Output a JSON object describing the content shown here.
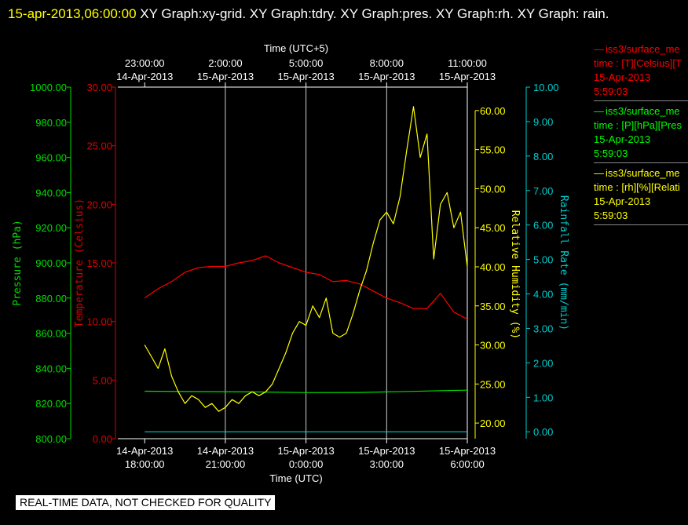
{
  "header": {
    "timestamp": "15-apr-2013,06:00:00",
    "graph_list": "  XY Graph:xy-grid.  XY Graph:tdry.  XY Graph:pres.  XY Graph:rh.  XY Graph: rain."
  },
  "legend": [
    {
      "name": "iss3/surface_me",
      "label": "time : [T][Celsius][T",
      "date": "15-Apr-2013",
      "time": "5:59:03",
      "color": "#ff0000"
    },
    {
      "name": "iss3/surface_me",
      "label": "time : [P][hPa][Pres",
      "date": "15-Apr-2013",
      "time": "5:59:03",
      "color": "#00ff00"
    },
    {
      "name": "iss3/surface_me",
      "label": "time : [rh][%][Relati",
      "date": "15-Apr-2013",
      "time": "5:59:03",
      "color": "#ffff00"
    }
  ],
  "notice": "REAL-TIME DATA, NOT CHECKED FOR QUALITY",
  "chart_data": {
    "type": "line",
    "top_axis": {
      "label": "Time (UTC+5)",
      "ticks": [
        {
          "x": 0.0,
          "date": "14-Apr-2013",
          "time": "23:00:00"
        },
        {
          "x": 3.0,
          "date": "15-Apr-2013",
          "time": "2:00:00"
        },
        {
          "x": 6.0,
          "date": "15-Apr-2013",
          "time": "5:00:00"
        },
        {
          "x": 9.0,
          "date": "15-Apr-2013",
          "time": "8:00:00"
        },
        {
          "x": 12.0,
          "date": "15-Apr-2013",
          "time": "11:00:00"
        }
      ]
    },
    "x_axis": {
      "label": "Time (UTC)",
      "range": [
        -1.0,
        12.0
      ],
      "ticks": [
        {
          "x": 0.0,
          "date": "14-Apr-2013",
          "time": "18:00:00"
        },
        {
          "x": 3.0,
          "date": "14-Apr-2013",
          "time": "21:00:00"
        },
        {
          "x": 6.0,
          "date": "15-Apr-2013",
          "time": "0:00:00"
        },
        {
          "x": 9.0,
          "date": "15-Apr-2013",
          "time": "3:00:00"
        },
        {
          "x": 12.0,
          "date": "15-Apr-2013",
          "time": "6:00:00"
        }
      ],
      "grid_vertical_at": [
        3.0,
        6.0,
        9.0
      ]
    },
    "y_axes": {
      "pressure": {
        "label": "Pressure (hPa)",
        "range": [
          800,
          1000
        ],
        "step": 20,
        "color": "#00dd00"
      },
      "temperature": {
        "label": "Temperature (Celsius)",
        "range": [
          0,
          30
        ],
        "step": 5,
        "color": "#dd0000"
      },
      "humidity": {
        "label": "Relative Humidity (%)",
        "range": [
          18,
          63
        ],
        "step": 5,
        "tick_start": 20,
        "tick_end": 60,
        "color": "#ffff00"
      },
      "rain": {
        "label": "Rainfall Rate (mm/min)",
        "range": [
          -0.2,
          10
        ],
        "step": 1,
        "tick_start": 0,
        "tick_end": 10,
        "color": "#00cccc"
      }
    },
    "series": [
      {
        "name": "T",
        "axis": "temperature",
        "color": "#ff0000",
        "x": [
          0,
          0.5,
          1,
          1.5,
          2,
          2.5,
          3,
          3.5,
          4,
          4.5,
          5,
          5.5,
          6,
          6.5,
          7,
          7.5,
          8,
          8.5,
          9,
          9.5,
          10,
          10.5,
          11,
          11.5,
          12
        ],
        "y": [
          12.0,
          12.8,
          13.4,
          14.2,
          14.6,
          14.7,
          14.7,
          15.0,
          15.2,
          15.6,
          15.0,
          14.6,
          14.2,
          14.0,
          13.4,
          13.5,
          13.2,
          12.6,
          12.0,
          11.6,
          11.1,
          11.1,
          12.4,
          10.8,
          10.2
        ]
      },
      {
        "name": "P",
        "axis": "pressure",
        "color": "#00dd00",
        "x": [
          0,
          2,
          4,
          6,
          8,
          9,
          10,
          11,
          12
        ],
        "y": [
          827.0,
          826.8,
          826.6,
          826.2,
          826.3,
          826.6,
          826.9,
          827.3,
          827.6
        ]
      },
      {
        "name": "rh",
        "axis": "humidity",
        "color": "#ffff00",
        "x": [
          0,
          0.25,
          0.5,
          0.75,
          1,
          1.25,
          1.5,
          1.75,
          2,
          2.25,
          2.5,
          2.75,
          3,
          3.25,
          3.5,
          3.75,
          4,
          4.25,
          4.5,
          4.75,
          5,
          5.25,
          5.5,
          5.75,
          6,
          6.25,
          6.5,
          6.75,
          7,
          7.25,
          7.5,
          7.75,
          8,
          8.25,
          8.5,
          8.75,
          9,
          9.25,
          9.5,
          9.75,
          10,
          10.25,
          10.5,
          10.75,
          11,
          11.25,
          11.5,
          11.75,
          12
        ],
        "y": [
          30.0,
          28.5,
          27.0,
          29.5,
          26.0,
          24.0,
          22.5,
          23.5,
          23.0,
          22.0,
          22.5,
          21.5,
          22.0,
          23.0,
          22.5,
          23.5,
          24.0,
          23.5,
          24.0,
          25.0,
          27.0,
          29.0,
          31.5,
          33.0,
          32.5,
          35.0,
          33.5,
          36.0,
          31.5,
          31.0,
          31.5,
          34.0,
          37.0,
          39.5,
          43.0,
          46.0,
          47.0,
          45.5,
          49.0,
          55.0,
          60.5,
          54.0,
          57.0,
          41.0,
          48.0,
          49.5,
          45.0,
          47.0,
          40.0
        ]
      },
      {
        "name": "rain",
        "axis": "rain",
        "color": "#00cccc",
        "x": [
          0,
          12
        ],
        "y": [
          0,
          0
        ]
      }
    ]
  }
}
